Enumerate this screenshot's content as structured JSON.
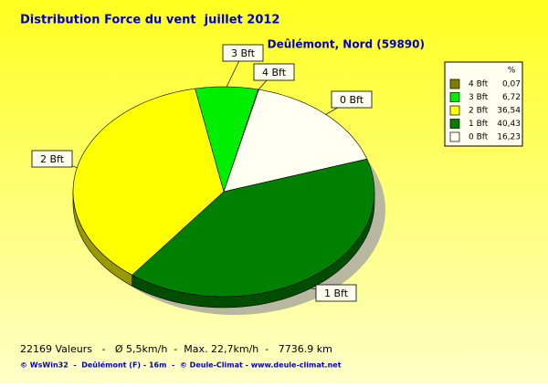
{
  "chart_data": {
    "type": "pie",
    "title": "Distribution Force du vent  juillet 2012",
    "subtitle": "Deûlémont, Nord (59890)",
    "categories": [
      "4 Bft",
      "3 Bft",
      "2 Bft",
      "1 Bft",
      "0 Bft"
    ],
    "values": [
      0.07,
      6.72,
      36.54,
      40.43,
      16.23
    ],
    "value_labels": [
      "0,07",
      "6,72",
      "36,54",
      "40,43",
      "16,23"
    ],
    "colors": [
      "#808000",
      "#00ee00",
      "#ffff00",
      "#008000",
      "#fffff2"
    ],
    "legend_title": "%",
    "footer": "22169 Valeurs   -   Ø 5,5km/h  -  Max. 22,7km/h  -   7736.9 km",
    "credits": "© WsWin32  -  Deûlémont (F) - 16m  -  © Deule-Climat - www.deule-climat.net"
  }
}
